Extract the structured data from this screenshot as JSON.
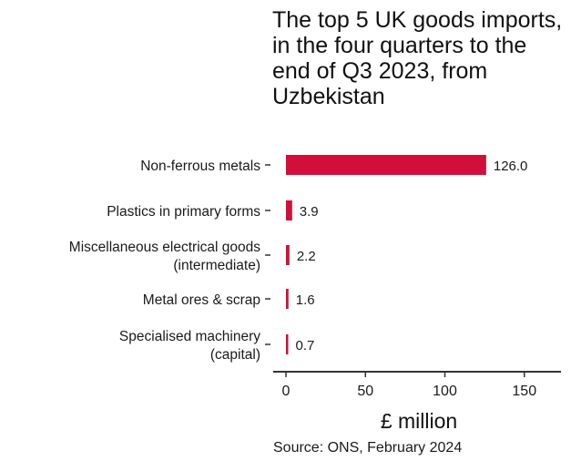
{
  "chart_data": {
    "type": "bar",
    "orientation": "horizontal",
    "title": "The top 5 UK goods imports, in the four quarters to the end of Q3 2023, from Uzbekistan",
    "categories": [
      "Non-ferrous metals",
      "Plastics in primary forms",
      "Miscellaneous electrical goods (intermediate)",
      "Metal ores & scrap",
      "Specialised machinery (capital)"
    ],
    "category_lines": [
      [
        "Non-ferrous metals"
      ],
      [
        "Plastics in primary forms"
      ],
      [
        "Miscellaneous electrical goods",
        "(intermediate)"
      ],
      [
        "Metal ores & scrap"
      ],
      [
        "Specialised machinery",
        "(capital)"
      ]
    ],
    "values": [
      126.0,
      3.9,
      2.2,
      1.6,
      0.7
    ],
    "data_labels": [
      "126.0",
      "3.9",
      "2.2",
      "1.6",
      "0.7"
    ],
    "xlabel": "£ million",
    "ylabel": "",
    "xlim": [
      0,
      170
    ],
    "x_ticks": [
      0,
      50,
      100,
      150
    ],
    "grid": false,
    "bar_color": "#d0103a",
    "source": "Source: ONS, February 2024"
  }
}
